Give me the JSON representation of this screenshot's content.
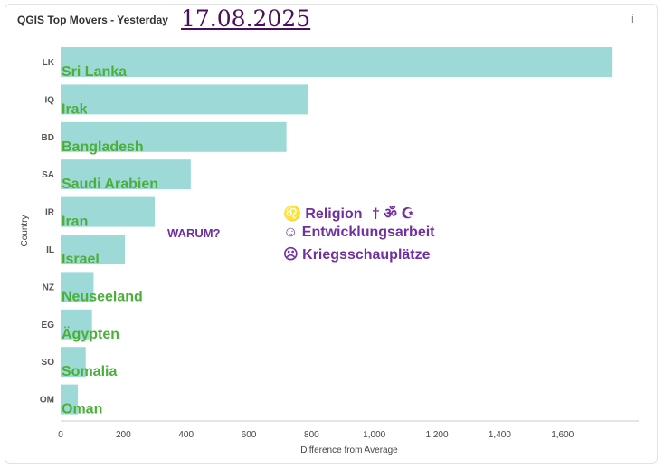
{
  "header": {
    "title": "QGIS Top Movers - Yesterday",
    "date": "17.08.2025",
    "info_icon": "i"
  },
  "annotations": {
    "question": "WARUM?",
    "lines": [
      {
        "symbol": "♌",
        "text": "Religion",
        "extra": "† ॐ ☪"
      },
      {
        "symbol": "☺",
        "text": "Entwicklungsarbeit",
        "extra": ""
      },
      {
        "symbol": "☹",
        "text": "Kriegsschauplätze",
        "extra": ""
      }
    ]
  },
  "colors": {
    "bar": "#9dd9d7",
    "label": "#4caf3a",
    "annotation": "#7030a0"
  },
  "chart_data": {
    "type": "bar",
    "orientation": "horizontal",
    "categories": [
      "LK",
      "IQ",
      "BD",
      "SA",
      "IR",
      "IL",
      "NZ",
      "EG",
      "SO",
      "OM"
    ],
    "bar_labels": [
      "Sri Lanka",
      "Irak",
      "Bangladesh",
      "Saudi Arabien",
      "Iran",
      "Israel",
      "Neuseeland",
      "Ägypten",
      "Somalia",
      "Oman"
    ],
    "values": [
      1760,
      790,
      720,
      415,
      300,
      205,
      105,
      100,
      80,
      55
    ],
    "xlabel": "Difference from Average",
    "ylabel": "Country",
    "xlim": [
      0,
      1850
    ],
    "xticks": [
      0,
      200,
      400,
      600,
      800,
      1000,
      1200,
      1400,
      1600
    ],
    "xtick_labels": [
      "0",
      "200",
      "400",
      "600",
      "800",
      "1,000",
      "1,200",
      "1,400",
      "1,600"
    ],
    "grid": false
  }
}
